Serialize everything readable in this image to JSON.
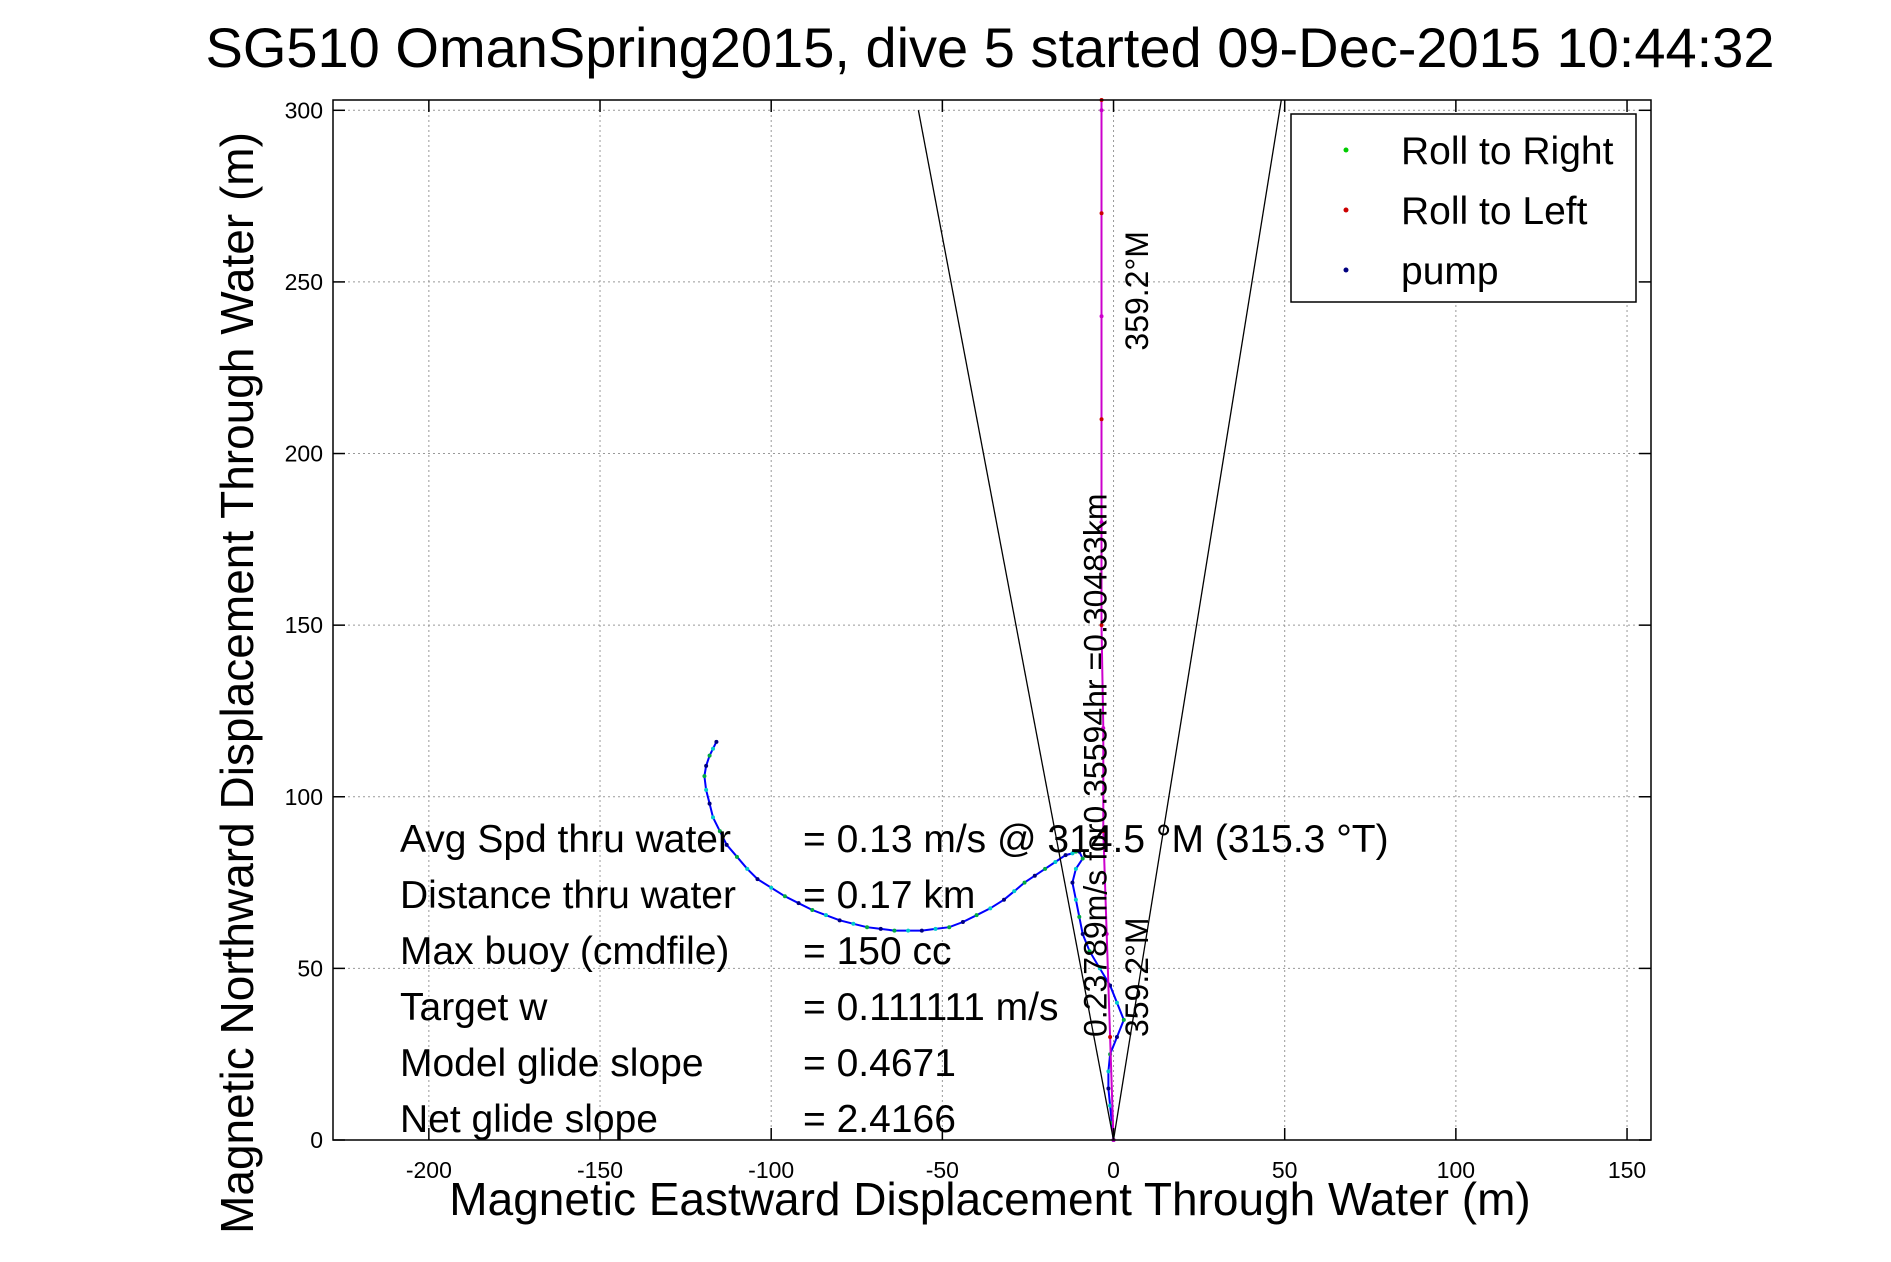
{
  "chart_data": {
    "type": "line",
    "title": "SG510 OmanSpring2015, dive 5 started 09-Dec-2015 10:44:32",
    "xlabel": "Magnetic Eastward Displacement Through Water (m)",
    "ylabel": "Magnetic Northward Displacement Through Water (m)",
    "xlim": [
      -228,
      157
    ],
    "ylim": [
      0,
      303
    ],
    "xticks": [
      -200,
      -150,
      -100,
      -50,
      0,
      50,
      100,
      150
    ],
    "xtick_labels": [
      "-200",
      "-150",
      "-100",
      "-50",
      "0",
      "50",
      "100",
      "150"
    ],
    "yticks": [
      0,
      50,
      100,
      150,
      200,
      250,
      300
    ],
    "ytick_labels": [
      "0",
      "50",
      "100",
      "150",
      "200",
      "250",
      "300"
    ],
    "grid": true,
    "legend_position": "top-right",
    "legend": [
      {
        "label": "Roll to Right",
        "color": "#00cc00"
      },
      {
        "label": "Roll to Left",
        "color": "#cc0000"
      },
      {
        "label": "pump",
        "color": "#000080"
      }
    ],
    "series": [
      {
        "color": "#0000ff",
        "x": [
          0,
          -0.5,
          -1,
          -1.5,
          -1.5,
          -1,
          1,
          3,
          1,
          -1,
          -4,
          -7,
          -9,
          -10,
          -11,
          -12,
          -11,
          -9,
          -10,
          -11,
          -12,
          -14,
          -17,
          -20,
          -23,
          -26,
          -29,
          -32,
          -36,
          -40,
          -44,
          -48,
          -52,
          -56,
          -60,
          -64,
          -68,
          -72,
          -76,
          -80,
          -84,
          -88,
          -92,
          -96,
          -100,
          -104,
          -107,
          -110,
          -113,
          -115,
          -117,
          -118,
          -119,
          -119.5,
          -119,
          -118,
          -117,
          -116
        ],
        "y": [
          0,
          5,
          10,
          15,
          20,
          25,
          30,
          35,
          40,
          45,
          50,
          55,
          60,
          65,
          70,
          75,
          79,
          82,
          84,
          84,
          83.5,
          83,
          81,
          79,
          77,
          75,
          72.5,
          70,
          67.5,
          65.5,
          63.5,
          62,
          61.5,
          61,
          61,
          61,
          61.5,
          62,
          63,
          64,
          65.5,
          67,
          69,
          71,
          73.5,
          76,
          79,
          82.5,
          86,
          90,
          94,
          98,
          102,
          106,
          109,
          112,
          114,
          116
        ]
      },
      {
        "color": "#cc00cc",
        "x": [
          0,
          -1,
          -2,
          -3,
          -3,
          -3.5,
          -3.5,
          -3.5,
          -3.5,
          -3.5,
          -3.5,
          -3.5
        ],
        "y": [
          0,
          30,
          60,
          90,
          120,
          150,
          180,
          210,
          240,
          270,
          300,
          303
        ]
      },
      {
        "color": "#000000",
        "x": [
          0,
          -57
        ],
        "y": [
          0,
          300
        ]
      },
      {
        "color": "#000000",
        "x": [
          0,
          49
        ],
        "y": [
          0,
          303
        ]
      }
    ],
    "annotations": [
      {
        "text": "Avg Spd thru water",
        "value": "=  0.13 m/s @  314.5 °M (315.3 °T)"
      },
      {
        "text": "Distance thru water",
        "value": "=  0.17 km"
      },
      {
        "text": "Max buoy (cmdfile)",
        "value": "= 150 cc"
      },
      {
        "text": "Target w",
        "value": "= 0.111111 m/s"
      },
      {
        "text": "Model glide slope",
        "value": "= 0.4671"
      },
      {
        "text": "Net glide slope",
        "value": "= 2.4166"
      }
    ],
    "rotated_labels": [
      {
        "text": "0.23789m/s for0.35594hr =0.30483km",
        "x": -2,
        "y": 30
      },
      {
        "text": "359.2°M",
        "x": 10,
        "y": 30
      },
      {
        "text": "359.2°M",
        "x": 10,
        "y": 230
      }
    ]
  }
}
